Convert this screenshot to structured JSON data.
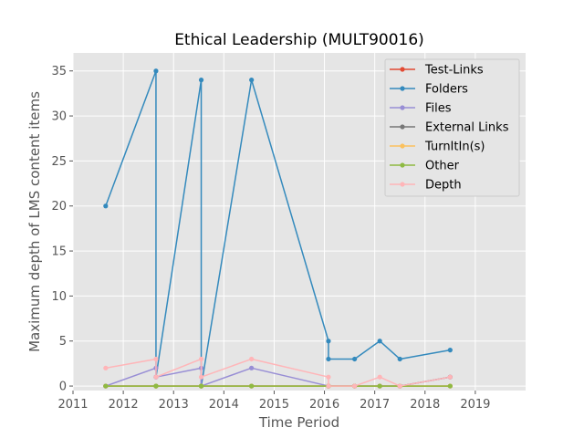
{
  "chart_data": {
    "type": "line",
    "title": "Ethical Leadership (MULT90016)",
    "xlabel": "Time Period",
    "ylabel": "Maximum depth of LMS content items",
    "xlim": [
      2011,
      2020
    ],
    "ylim": [
      -0.5,
      37
    ],
    "x_ticks": [
      2011,
      2012,
      2013,
      2014,
      2015,
      2016,
      2017,
      2018,
      2019
    ],
    "y_ticks": [
      0,
      5,
      10,
      15,
      20,
      25,
      30,
      35
    ],
    "grid": true,
    "legend_position": "top-right",
    "x": [
      2011.65,
      2012.65,
      2012.65,
      2013.55,
      2013.55,
      2014.55,
      2016.08,
      2016.08,
      2016.6,
      2017.1,
      2017.5,
      2018.5
    ],
    "series": [
      {
        "name": "Test-Links",
        "color": "#E24A33",
        "values": [
          0,
          0,
          0,
          0,
          0,
          0,
          0,
          0,
          0,
          0,
          0,
          0
        ]
      },
      {
        "name": "Folders",
        "color": "#348ABD",
        "values": [
          20,
          35,
          1,
          34,
          0,
          34,
          5,
          3,
          3,
          5,
          3,
          4
        ]
      },
      {
        "name": "Files",
        "color": "#988ED5",
        "values": [
          0,
          2,
          1,
          2,
          0,
          2,
          0,
          0,
          0,
          0,
          0,
          1
        ]
      },
      {
        "name": "External Links",
        "color": "#777777",
        "values": [
          0,
          0,
          0,
          0,
          0,
          0,
          0,
          0,
          0,
          0,
          0,
          1
        ]
      },
      {
        "name": "TurnItIn(s)",
        "color": "#FBC15E",
        "values": [
          0,
          0,
          0,
          0,
          0,
          0,
          0,
          0,
          0,
          0,
          0,
          0
        ]
      },
      {
        "name": "Other",
        "color": "#8EBA42",
        "values": [
          0,
          0,
          0,
          0,
          0,
          0,
          0,
          0,
          0,
          0,
          0,
          0
        ]
      },
      {
        "name": "Depth",
        "color": "#FFB5B8",
        "values": [
          2,
          3,
          1,
          3,
          1,
          3,
          1,
          0,
          0,
          1,
          0,
          1
        ]
      }
    ]
  }
}
